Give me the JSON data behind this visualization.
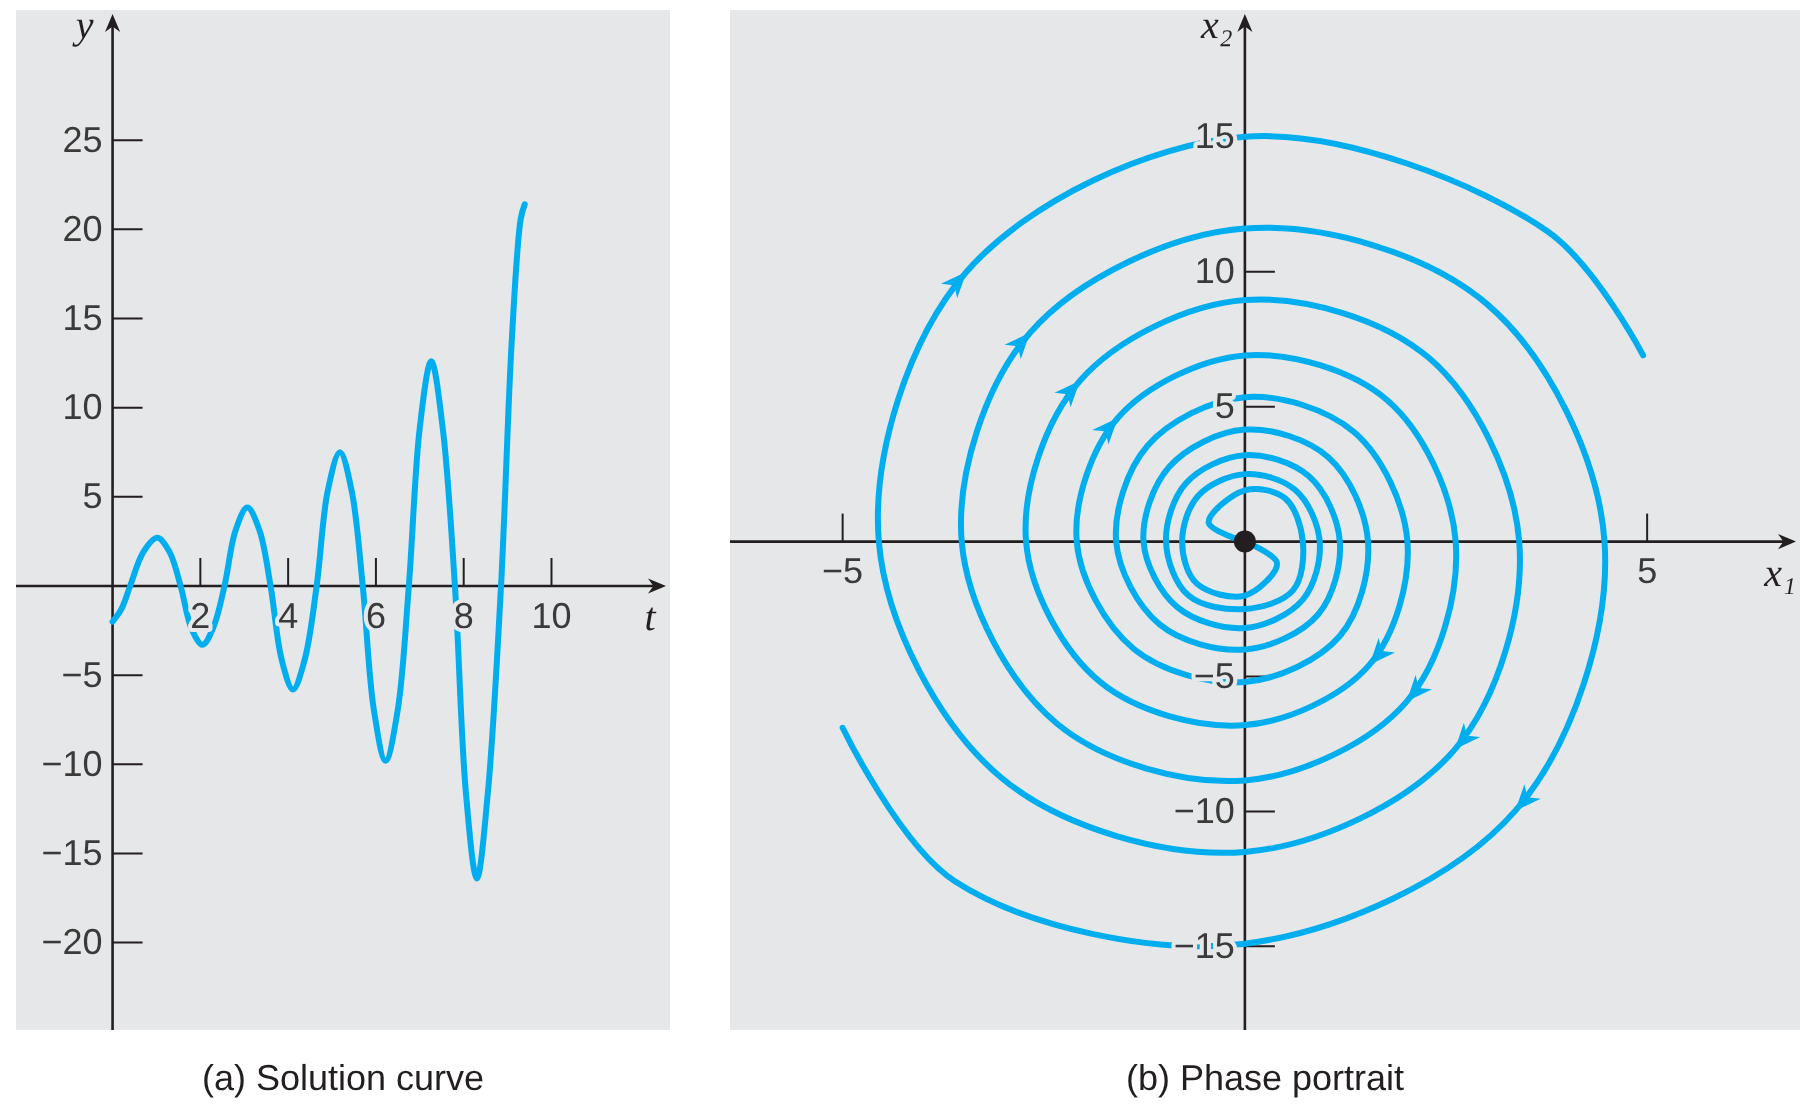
{
  "chart_data": [
    {
      "type": "line",
      "title": "(a) Solution curve",
      "xlabel": "t",
      "ylabel": "y",
      "xlim": [
        -2.2,
        12.7
      ],
      "ylim": [
        -24.9,
        32.3
      ],
      "xticks": [
        2,
        4,
        6,
        8,
        10
      ],
      "yticks": [
        -20,
        -15,
        -10,
        -5,
        5,
        10,
        15,
        20,
        25
      ],
      "x": [
        0,
        0.2,
        0.4,
        0.7,
        1.02,
        1.3,
        1.55,
        1.8,
        2.05,
        2.3,
        2.55,
        2.8,
        3.07,
        3.35,
        3.6,
        3.85,
        4.11,
        4.38,
        4.65,
        4.9,
        5.18,
        5.45,
        5.7,
        5.95,
        6.22,
        6.5,
        6.75,
        7.0,
        7.26,
        7.52,
        7.8,
        8.05,
        8.3,
        8.55,
        8.85,
        9.1,
        9.3,
        9.39
      ],
      "series": [
        {
          "color": "#00aeef",
          "values": [
            -2.0,
            -1.3,
            0,
            1.9,
            2.7,
            1.9,
            0,
            -2.4,
            -3.3,
            -2.3,
            0,
            3.1,
            4.4,
            3.1,
            0,
            -4.1,
            -5.8,
            -4.1,
            0,
            5.3,
            7.5,
            5.3,
            0,
            -6.9,
            -9.8,
            -6.9,
            0,
            8.9,
            12.6,
            8.9,
            0,
            -11.6,
            -16.4,
            -11.6,
            0,
            14.0,
            20.6,
            21.4
          ]
        }
      ]
    },
    {
      "type": "line",
      "title": "(b) Phase portrait",
      "xlabel": "x₁",
      "ylabel": "x₂",
      "xlim": [
        -6.4,
        6.9
      ],
      "ylim": [
        -18.1,
        19.7
      ],
      "xticks": [
        -5,
        5
      ],
      "yticks": [
        -15,
        -10,
        -5,
        5,
        10,
        15
      ],
      "series": [
        {
          "color": "#00aeef",
          "x": [
            0,
            -0.45,
            0,
            0.5,
            0.72,
            0.6,
            0,
            -0.7,
            -0.98,
            -0.73,
            0,
            0.8,
            1.18,
            0.91,
            0,
            -1.06,
            -1.6,
            -1.21,
            0,
            1.36,
            2.02,
            1.55,
            0,
            -1.8,
            -2.72,
            -2.05,
            0,
            2.29,
            3.41,
            2.61,
            0,
            -3.02,
            -4.55,
            -3.46,
            0,
            3.76,
            4.95
          ],
          "values": [
            0,
            0.7,
            1.9,
            1.6,
            0,
            -1.8,
            -2.5,
            -2.0,
            0,
            2.17,
            3.2,
            2.41,
            0,
            -2.7,
            -4.0,
            -3.07,
            0,
            3.55,
            5.35,
            4.05,
            0,
            -4.56,
            -6.8,
            -5.2,
            0,
            5.96,
            8.95,
            6.8,
            0,
            -7.7,
            -11.5,
            -8.77,
            0,
            10.0,
            15,
            11.5,
            6.9
          ]
        },
        {
          "color": "#00aeef",
          "x": [
            0,
            0.4,
            0,
            -0.6,
            -0.78,
            -0.58,
            0,
            0.63,
            0.93,
            0.72,
            0,
            -0.84,
            -1.26,
            -0.94,
            0,
            1.04,
            1.53,
            1.18,
            0,
            -1.38,
            -2.09,
            -1.58,
            0,
            1.77,
            2.62,
            2.01,
            0,
            -2.33,
            -3.52,
            -2.67,
            0,
            3.01,
            4.47,
            3.36,
            0,
            -3.6,
            -5.0
          ],
          "values": [
            0,
            -0.8,
            -2.0,
            -1.55,
            0,
            1.7,
            2.5,
            1.9,
            0,
            -2.15,
            -3.2,
            -2.43,
            0,
            2.77,
            4.15,
            3.12,
            0,
            -3.5,
            -5.2,
            -3.98,
            0,
            4.58,
            6.9,
            5.24,
            0,
            -5.93,
            -8.85,
            -6.76,
            0,
            7.74,
            11.6,
            8.8,
            0,
            -9.98,
            -14.9,
            -12.6,
            -6.9
          ]
        },
        {
          "type": "scatter",
          "marker": "circle",
          "color": "#231f20",
          "x": [
            0
          ],
          "values": [
            0
          ]
        }
      ]
    }
  ]
}
